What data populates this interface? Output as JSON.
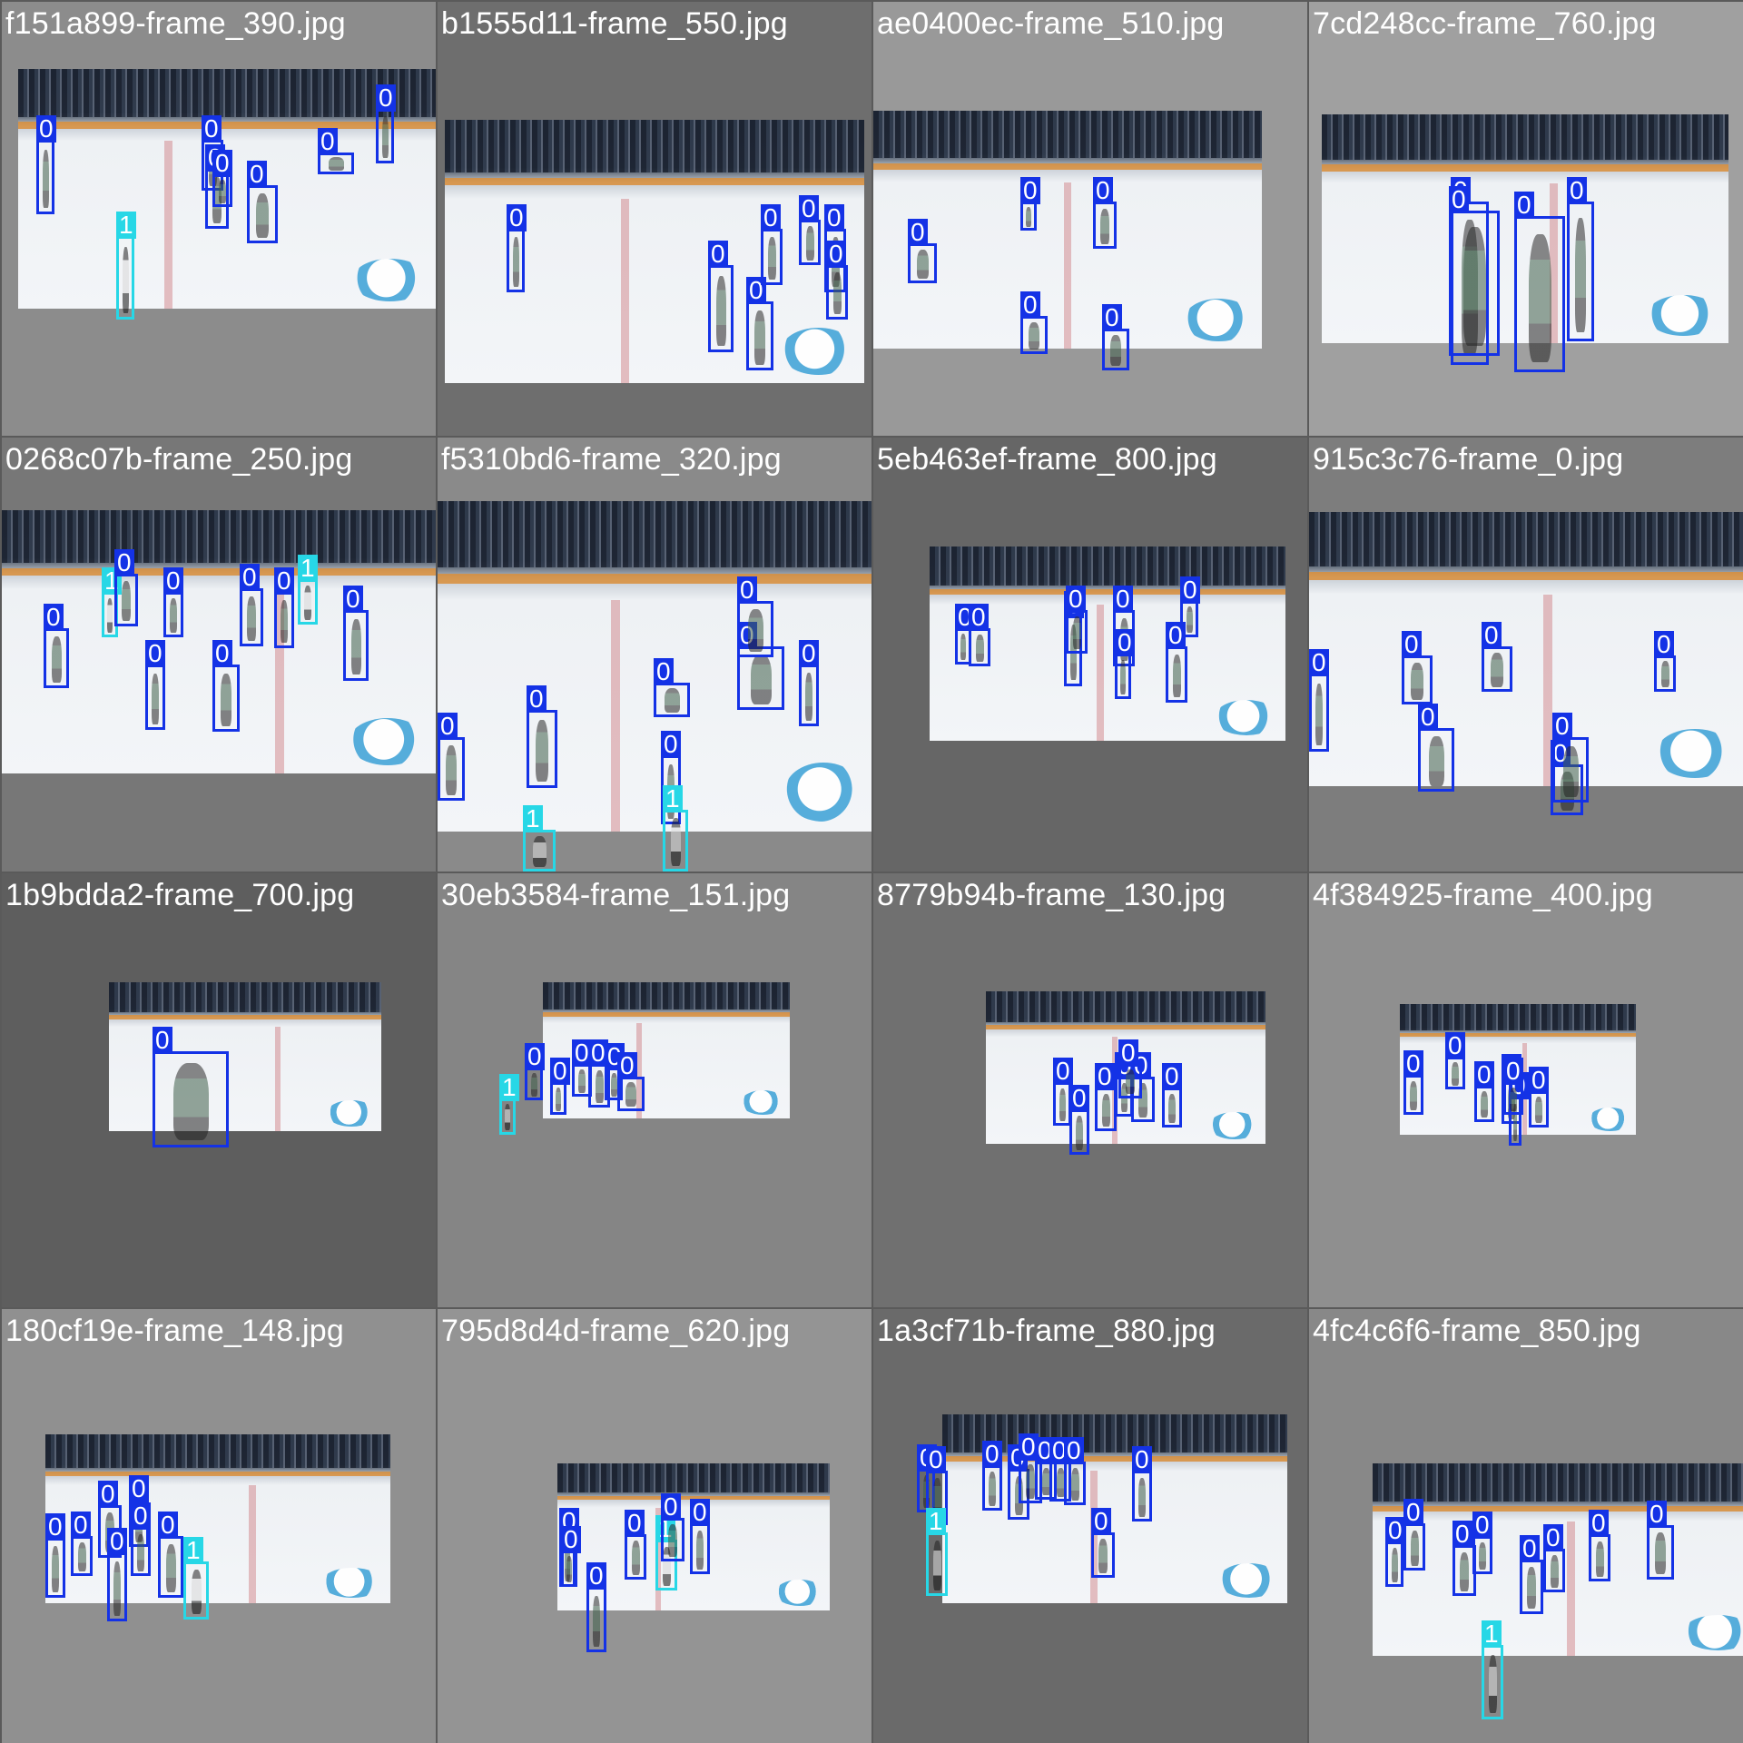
{
  "mosaic": {
    "tile_backgrounds": [
      "#8c8c8c",
      "#6e6e6e",
      "#999999",
      "#a0a0a0",
      "#777777",
      "#8a8a8a",
      "#666666",
      "#7d7d7d",
      "#5e5e5e",
      "#858585",
      "#707070",
      "#8f8f8f",
      "#909090",
      "#949494",
      "#6a6a6a",
      "#888888"
    ],
    "tiles": [
      {
        "title": "f151a899-frame_390.jpg",
        "labels": [
          "0",
          "0",
          "0",
          "0",
          "0",
          "0",
          "0",
          "1"
        ]
      },
      {
        "title": "b1555d11-frame_550.jpg",
        "labels": [
          "0",
          "0",
          "0",
          "0",
          "0",
          "0",
          "0"
        ]
      },
      {
        "title": "ae0400ec-frame_510.jpg",
        "labels": [
          "0",
          "0",
          "0",
          "0",
          "0"
        ]
      },
      {
        "title": "7cd248cc-frame_760.jpg",
        "labels": [
          "0",
          "0",
          "0",
          "0"
        ]
      },
      {
        "title": "0268c07b-frame_250.jpg",
        "labels": [
          "0",
          "1",
          "0",
          "0",
          "0",
          "0",
          "0",
          "1",
          "0",
          "0"
        ]
      },
      {
        "title": "f5310bd6-frame_320.jpg",
        "labels": [
          "0",
          "0",
          "0",
          "0",
          "0",
          "0",
          "1",
          "1",
          "0"
        ]
      },
      {
        "title": "5eb463ef-frame_800.jpg",
        "labels": [
          "0",
          "0",
          "0",
          "0",
          "0",
          "0",
          "0",
          "0"
        ]
      },
      {
        "title": "915c3c76-frame_0.jpg",
        "labels": [
          "0",
          "0",
          "0",
          "0",
          "0",
          "0",
          "0"
        ]
      },
      {
        "title": "1b9bdda2-frame_700.jpg",
        "labels": [
          "0"
        ]
      },
      {
        "title": "30eb3584-frame_151.jpg",
        "labels": [
          "0",
          "1",
          "0",
          "0",
          "0",
          "0",
          "0"
        ]
      },
      {
        "title": "8779b94b-frame_130.jpg",
        "labels": [
          "0",
          "0",
          "0",
          "0",
          "0",
          "0",
          "0"
        ]
      },
      {
        "title": "4f384925-frame_400.jpg",
        "labels": [
          "0",
          "0",
          "0",
          "0",
          "0",
          "0",
          "0"
        ]
      },
      {
        "title": "180cf19e-frame_148.jpg",
        "labels": [
          "0",
          "0",
          "0",
          "0",
          "0",
          "0",
          "1",
          "0"
        ]
      },
      {
        "title": "795d8d4d-frame_620.jpg",
        "labels": [
          "0",
          "0",
          "1",
          "0",
          "0",
          "0",
          "0"
        ]
      },
      {
        "title": "1a3cf71b-frame_880.jpg",
        "labels": [
          "0",
          "0",
          "0",
          "0",
          "0",
          "0",
          "0",
          "0",
          "1",
          "0",
          "0"
        ]
      },
      {
        "title": "4fc4c6f6-frame_850.jpg",
        "labels": [
          "0",
          "0",
          "0",
          "0",
          "0",
          "0",
          "0",
          "0",
          "1"
        ]
      }
    ]
  },
  "colors": {
    "class_0_box": "#1432e6",
    "class_1_box": "#27d7e6",
    "label_text": "#ffffff"
  }
}
